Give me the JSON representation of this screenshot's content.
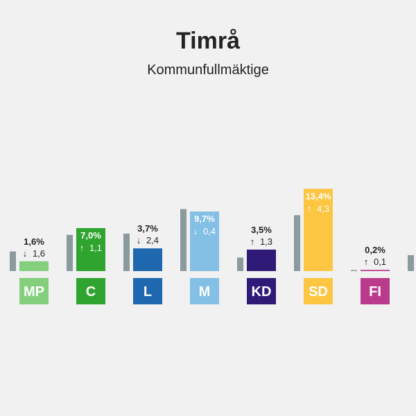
{
  "header": {
    "title": "Timrå",
    "subtitle": "Kommunfullmäktige"
  },
  "colors": {
    "previous_bar": "#8a9a9d",
    "label_text": "#ffffff",
    "value_text": "#222222"
  },
  "chart_data": {
    "type": "bar",
    "categories": [
      "MP",
      "C",
      "L",
      "M",
      "KD",
      "SD",
      "FI"
    ],
    "series": [
      {
        "values": [
          1.6,
          7.0,
          3.7,
          9.7,
          3.5,
          13.4,
          0.2
        ]
      },
      {
        "values": [
          3.2,
          5.9,
          6.1,
          10.1,
          2.2,
          9.1,
          0.1
        ]
      }
    ],
    "labels": [
      "1,6%",
      "7,0%",
      "3,7%",
      "9,7%",
      "3,5%",
      "13,4%",
      "0,2%"
    ],
    "change_labels": [
      "1,6",
      "1,1",
      "2,4",
      "0,4",
      "1,3",
      "4,3",
      "0,1"
    ],
    "change_direction": [
      "down",
      "up",
      "down",
      "down",
      "up",
      "up",
      "up"
    ],
    "colors": [
      "#83cf7d",
      "#2fa42f",
      "#1f67ae",
      "#84bfe5",
      "#2f1a78",
      "#fcc542",
      "#ba3b8c"
    ],
    "extra_previous_values": [
      2.6
    ],
    "ylim": [
      0,
      15
    ]
  }
}
